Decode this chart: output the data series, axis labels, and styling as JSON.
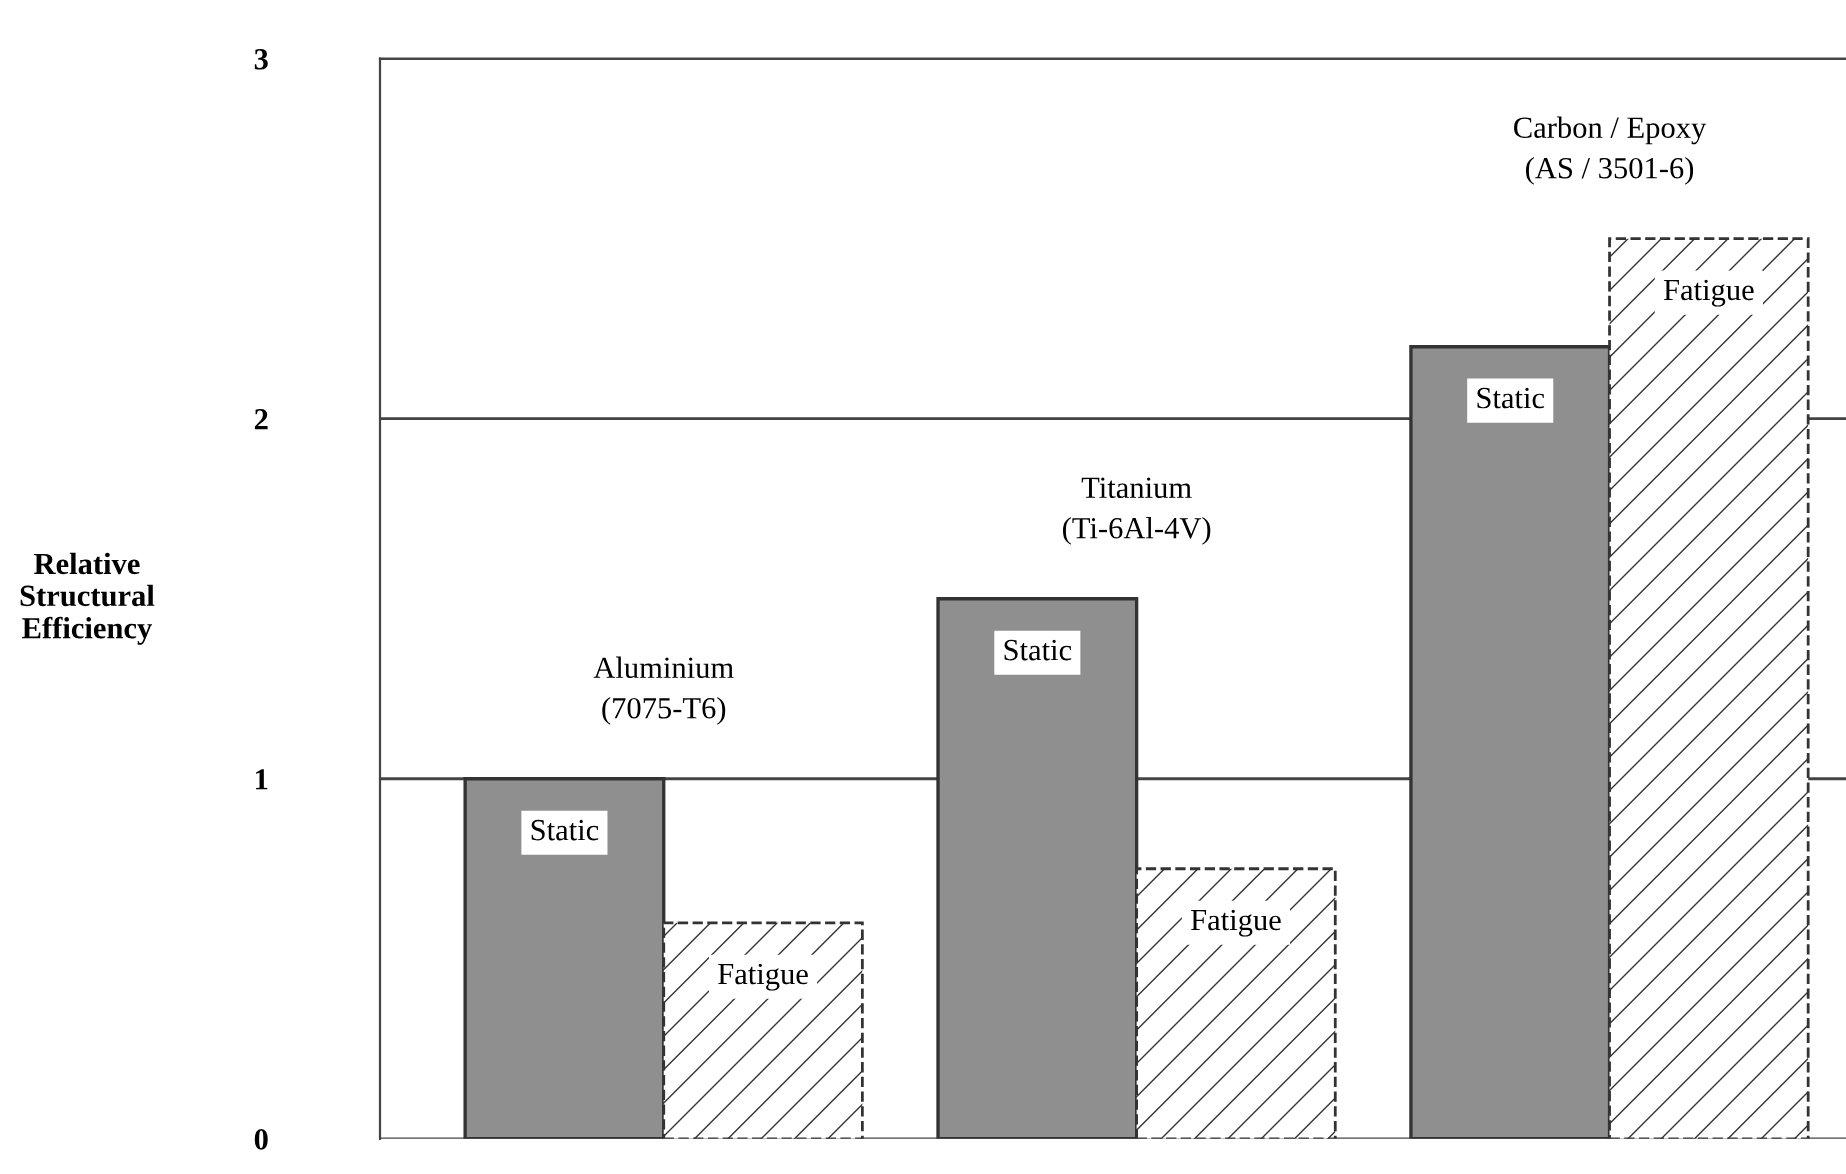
{
  "chart_data": {
    "type": "bar",
    "ylabel": "Relative\nStructural\nEfficiency",
    "categories": [
      "Aluminium\n(7075-T6)",
      "Titanium\n(Ti-6Al-4V)",
      "Carbon / Epoxy\n(AS / 3501-6)"
    ],
    "series": [
      {
        "name": "Static",
        "color": "#8f8f8f",
        "values": [
          1.0,
          1.5,
          2.2
        ]
      },
      {
        "name": "Fatigue",
        "color": "#333333",
        "values": [
          0.6,
          0.75,
          2.5
        ]
      }
    ],
    "ylim": [
      0,
      3
    ],
    "yticks": [
      0,
      1,
      2,
      3
    ],
    "grid": "y",
    "tick_labels": "y",
    "legend": false
  }
}
